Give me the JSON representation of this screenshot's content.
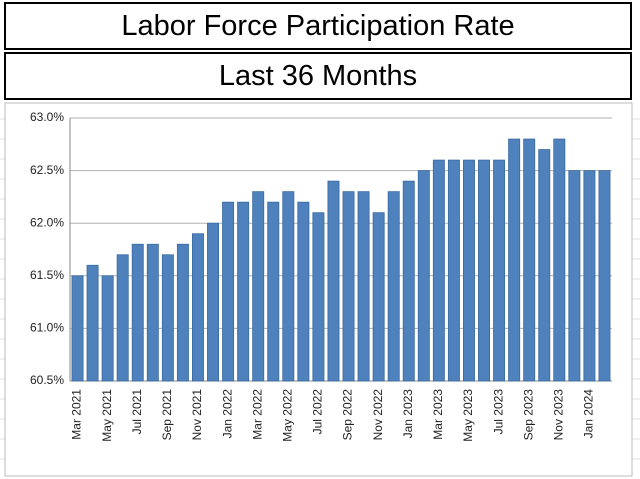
{
  "chart_data": {
    "type": "bar",
    "title": "Labor Force Participation Rate",
    "subtitle": "Last 36 Months",
    "categories": [
      "Mar 2021",
      null,
      "May 2021",
      null,
      "Jul 2021",
      null,
      "Sep 2021",
      null,
      "Nov 2021",
      null,
      "Jan 2022",
      null,
      "Mar 2022",
      null,
      "May 2022",
      null,
      "Jul 2022",
      null,
      "Sep 2022",
      null,
      "Nov 2022",
      null,
      "Jan 2023",
      null,
      "Mar 2023",
      null,
      "May 2023",
      null,
      "Jul 2023",
      null,
      "Sep 2023",
      null,
      "Nov 2023",
      null,
      "Jan 2024",
      null
    ],
    "values": [
      61.5,
      61.6,
      61.5,
      61.7,
      61.8,
      61.8,
      61.7,
      61.8,
      61.9,
      62.0,
      62.2,
      62.2,
      62.3,
      62.2,
      62.3,
      62.2,
      62.1,
      62.4,
      62.3,
      62.3,
      62.1,
      62.3,
      62.4,
      62.5,
      62.6,
      62.6,
      62.6,
      62.6,
      62.6,
      62.8,
      62.8,
      62.7,
      62.8,
      62.5,
      62.5,
      62.5
    ],
    "color": "#4f81bd",
    "ylim": [
      60.5,
      63.0
    ],
    "yticks": [
      {
        "value": 60.5,
        "label": "60.5%"
      },
      {
        "value": 61.0,
        "label": "61.0%"
      },
      {
        "value": 61.5,
        "label": "61.5%"
      },
      {
        "value": 62.0,
        "label": "62.0%"
      },
      {
        "value": 62.5,
        "label": "62.5%"
      },
      {
        "value": 63.0,
        "label": "63.0%"
      }
    ],
    "grid": true
  }
}
